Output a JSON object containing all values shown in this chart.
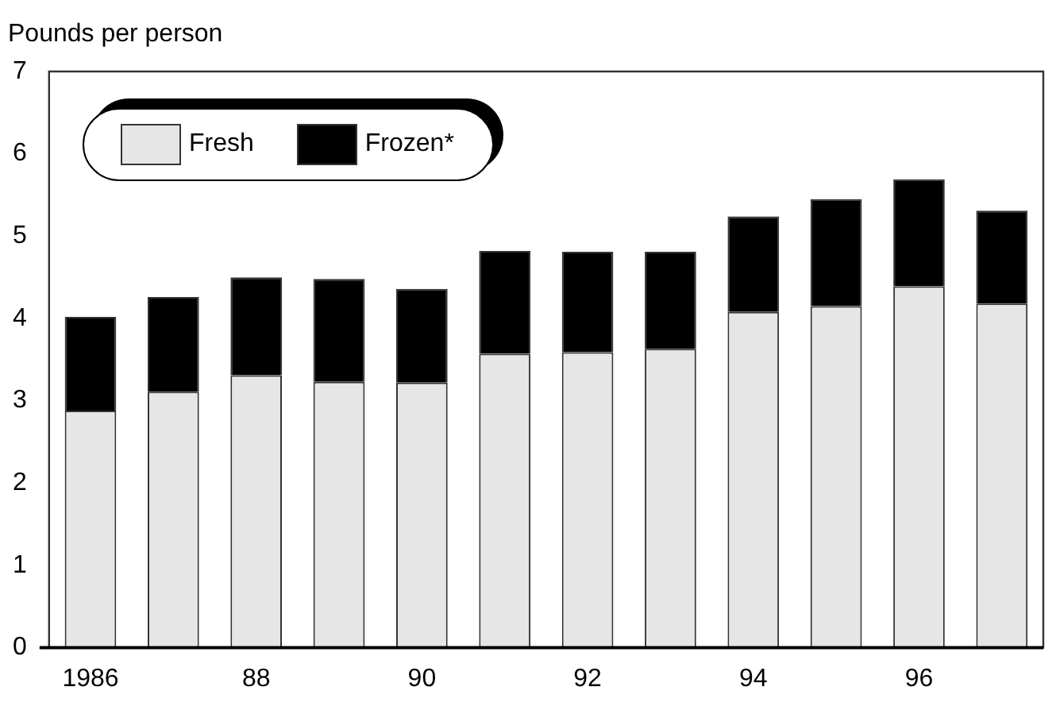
{
  "chart_data": {
    "type": "bar",
    "ylabel": "Pounds per person",
    "stacked": true,
    "categories": [
      "1986",
      null,
      "88",
      null,
      "90",
      null,
      "92",
      null,
      "94",
      null,
      "96",
      null
    ],
    "series": [
      {
        "name": "Fresh",
        "color": "#e6e6e6",
        "values": [
          2.88,
          3.11,
          3.31,
          3.23,
          3.22,
          3.57,
          3.59,
          3.63,
          4.08,
          4.15,
          4.39,
          4.18
        ]
      },
      {
        "name": "Frozen*",
        "color": "#000000",
        "values": [
          1.14,
          1.15,
          1.19,
          1.25,
          1.14,
          1.25,
          1.22,
          1.18,
          1.16,
          1.3,
          1.3,
          1.13
        ]
      }
    ],
    "ylim": [
      0,
      7
    ],
    "yticks": [
      0,
      1,
      2,
      3,
      4,
      5,
      6,
      7
    ],
    "grid": false,
    "legend": "top left"
  }
}
